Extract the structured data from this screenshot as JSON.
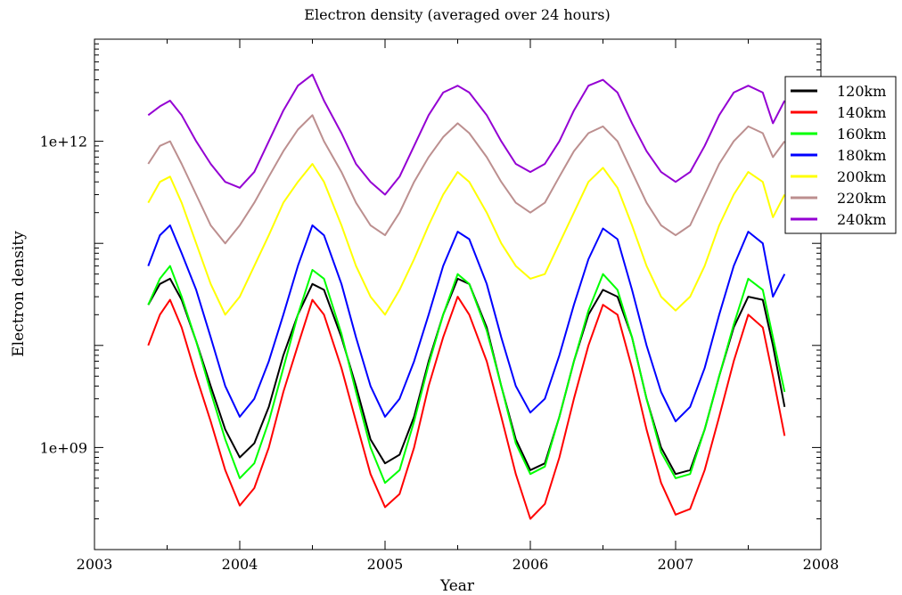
{
  "chart_data": {
    "type": "line",
    "title": "Electron density (averaged over 24 hours)",
    "xlabel": "Year",
    "ylabel": "Electron density",
    "xlim": [
      2003,
      2008
    ],
    "ylim": [
      100000000.0,
      10000000000000.0
    ],
    "yscale": "log",
    "grid": false,
    "legend_position": "top-right",
    "x_ticks": [
      2003,
      2004,
      2005,
      2006,
      2007,
      2008
    ],
    "x_tick_labels": [
      "2003",
      "2004",
      "2005",
      "2006",
      "2007",
      "2008"
    ],
    "y_ticks": [
      1000000000.0,
      1000000000000.0
    ],
    "y_tick_labels": [
      "1e+09",
      "1e+12"
    ],
    "series": [
      {
        "name": "120km",
        "color": "#000000",
        "x": [
          2003.37,
          2003.45,
          2003.52,
          2003.6,
          2003.7,
          2003.8,
          2003.9,
          2004.0,
          2004.1,
          2004.2,
          2004.3,
          2004.4,
          2004.5,
          2004.58,
          2004.7,
          2004.8,
          2004.9,
          2005.0,
          2005.1,
          2005.2,
          2005.3,
          2005.4,
          2005.5,
          2005.58,
          2005.7,
          2005.8,
          2005.9,
          2006.0,
          2006.1,
          2006.2,
          2006.3,
          2006.4,
          2006.5,
          2006.6,
          2006.7,
          2006.8,
          2006.9,
          2007.0,
          2007.1,
          2007.2,
          2007.3,
          2007.4,
          2007.5,
          2007.6,
          2007.67,
          2007.75
        ],
        "y": [
          25000000000.0,
          40000000000.0,
          45000000000.0,
          28000000000.0,
          11000000000.0,
          4000000000.0,
          1500000000.0,
          800000000.0,
          1100000000.0,
          2500000000.0,
          8000000000.0,
          20000000000.0,
          40000000000.0,
          35000000000.0,
          12000000000.0,
          4000000000.0,
          1200000000.0,
          700000000.0,
          850000000.0,
          2000000000.0,
          7000000000.0,
          20000000000.0,
          45000000000.0,
          40000000000.0,
          15000000000.0,
          4000000000.0,
          1200000000.0,
          600000000.0,
          700000000.0,
          2000000000.0,
          7000000000.0,
          20000000000.0,
          35000000000.0,
          30000000000.0,
          12000000000.0,
          3000000000.0,
          1000000000.0,
          550000000.0,
          600000000.0,
          1500000000.0,
          5000000000.0,
          15000000000.0,
          30000000000.0,
          28000000000.0,
          10000000000.0,
          2500000000.0
        ]
      },
      {
        "name": "140km",
        "color": "#ff0000",
        "x": [
          2003.37,
          2003.45,
          2003.52,
          2003.6,
          2003.7,
          2003.8,
          2003.9,
          2004.0,
          2004.1,
          2004.2,
          2004.3,
          2004.4,
          2004.5,
          2004.58,
          2004.7,
          2004.8,
          2004.9,
          2005.0,
          2005.1,
          2005.2,
          2005.3,
          2005.4,
          2005.5,
          2005.58,
          2005.7,
          2005.8,
          2005.9,
          2006.0,
          2006.1,
          2006.2,
          2006.3,
          2006.4,
          2006.5,
          2006.6,
          2006.7,
          2006.8,
          2006.9,
          2007.0,
          2007.1,
          2007.2,
          2007.3,
          2007.4,
          2007.5,
          2007.6,
          2007.67,
          2007.75
        ],
        "y": [
          10000000000.0,
          20000000000.0,
          28000000000.0,
          15000000000.0,
          5000000000.0,
          1800000000.0,
          600000000.0,
          270000000.0,
          400000000.0,
          1000000000.0,
          3500000000.0,
          10000000000.0,
          28000000000.0,
          20000000000.0,
          6000000000.0,
          1800000000.0,
          550000000.0,
          260000000.0,
          350000000.0,
          1000000000.0,
          4000000000.0,
          12000000000.0,
          30000000000.0,
          20000000000.0,
          7000000000.0,
          2000000000.0,
          550000000.0,
          200000000.0,
          280000000.0,
          800000000.0,
          3000000000.0,
          10000000000.0,
          25000000000.0,
          20000000000.0,
          6000000000.0,
          1500000000.0,
          450000000.0,
          220000000.0,
          250000000.0,
          600000000.0,
          2000000000.0,
          7000000000.0,
          20000000000.0,
          15000000000.0,
          5000000000.0,
          1300000000.0
        ]
      },
      {
        "name": "160km",
        "color": "#00ff00",
        "x": [
          2003.37,
          2003.45,
          2003.52,
          2003.6,
          2003.7,
          2003.8,
          2003.9,
          2004.0,
          2004.1,
          2004.2,
          2004.3,
          2004.4,
          2004.5,
          2004.58,
          2004.7,
          2004.8,
          2004.9,
          2005.0,
          2005.1,
          2005.2,
          2005.3,
          2005.4,
          2005.5,
          2005.58,
          2005.7,
          2005.8,
          2005.9,
          2006.0,
          2006.1,
          2006.2,
          2006.3,
          2006.4,
          2006.5,
          2006.6,
          2006.7,
          2006.8,
          2006.9,
          2007.0,
          2007.1,
          2007.2,
          2007.3,
          2007.4,
          2007.5,
          2007.6,
          2007.67,
          2007.75
        ],
        "y": [
          25000000000.0,
          45000000000.0,
          60000000000.0,
          30000000000.0,
          11000000000.0,
          3500000000.0,
          1200000000.0,
          500000000.0,
          700000000.0,
          1800000000.0,
          6000000000.0,
          20000000000.0,
          55000000000.0,
          45000000000.0,
          13000000000.0,
          3500000000.0,
          1000000000.0,
          450000000.0,
          600000000.0,
          1800000000.0,
          6500000000.0,
          20000000000.0,
          50000000000.0,
          40000000000.0,
          14000000000.0,
          4000000000.0,
          1100000000.0,
          550000000.0,
          650000000.0,
          2000000000.0,
          7000000000.0,
          22000000000.0,
          50000000000.0,
          35000000000.0,
          12000000000.0,
          3000000000.0,
          900000000.0,
          500000000.0,
          550000000.0,
          1500000000.0,
          5000000000.0,
          16000000000.0,
          45000000000.0,
          35000000000.0,
          12000000000.0,
          3500000000.0
        ]
      },
      {
        "name": "180km",
        "color": "#0000ff",
        "x": [
          2003.37,
          2003.45,
          2003.52,
          2003.6,
          2003.7,
          2003.8,
          2003.9,
          2004.0,
          2004.1,
          2004.2,
          2004.3,
          2004.4,
          2004.5,
          2004.58,
          2004.7,
          2004.8,
          2004.9,
          2005.0,
          2005.1,
          2005.2,
          2005.3,
          2005.4,
          2005.5,
          2005.58,
          2005.7,
          2005.8,
          2005.9,
          2006.0,
          2006.1,
          2006.2,
          2006.3,
          2006.4,
          2006.5,
          2006.6,
          2006.7,
          2006.8,
          2006.9,
          2007.0,
          2007.1,
          2007.2,
          2007.3,
          2007.4,
          2007.5,
          2007.6,
          2007.67,
          2007.75
        ],
        "y": [
          60000000000.0,
          120000000000.0,
          150000000000.0,
          80000000000.0,
          35000000000.0,
          12000000000.0,
          4000000000.0,
          2000000000.0,
          3000000000.0,
          7000000000.0,
          20000000000.0,
          60000000000.0,
          150000000000.0,
          120000000000.0,
          40000000000.0,
          12000000000.0,
          4000000000.0,
          2000000000.0,
          3000000000.0,
          7000000000.0,
          20000000000.0,
          60000000000.0,
          130000000000.0,
          110000000000.0,
          40000000000.0,
          12000000000.0,
          4000000000.0,
          2200000000.0,
          3000000000.0,
          8000000000.0,
          25000000000.0,
          70000000000.0,
          140000000000.0,
          110000000000.0,
          35000000000.0,
          10000000000.0,
          3500000000.0,
          1800000000.0,
          2500000000.0,
          6000000000.0,
          20000000000.0,
          60000000000.0,
          130000000000.0,
          100000000000.0,
          30000000000.0,
          50000000000.0
        ]
      },
      {
        "name": "200km",
        "color": "#ffff00",
        "x": [
          2003.37,
          2003.45,
          2003.52,
          2003.6,
          2003.7,
          2003.8,
          2003.9,
          2004.0,
          2004.1,
          2004.2,
          2004.3,
          2004.4,
          2004.5,
          2004.58,
          2004.7,
          2004.8,
          2004.9,
          2005.0,
          2005.1,
          2005.2,
          2005.3,
          2005.4,
          2005.5,
          2005.58,
          2005.7,
          2005.8,
          2005.9,
          2006.0,
          2006.1,
          2006.2,
          2006.3,
          2006.4,
          2006.5,
          2006.6,
          2006.7,
          2006.8,
          2006.9,
          2007.0,
          2007.1,
          2007.2,
          2007.3,
          2007.4,
          2007.5,
          2007.6,
          2007.67,
          2007.75
        ],
        "y": [
          250000000000.0,
          400000000000.0,
          450000000000.0,
          250000000000.0,
          100000000000.0,
          40000000000.0,
          20000000000.0,
          30000000000.0,
          60000000000.0,
          120000000000.0,
          250000000000.0,
          400000000000.0,
          600000000000.0,
          400000000000.0,
          150000000000.0,
          60000000000.0,
          30000000000.0,
          20000000000.0,
          35000000000.0,
          70000000000.0,
          150000000000.0,
          300000000000.0,
          500000000000.0,
          400000000000.0,
          200000000000.0,
          100000000000.0,
          60000000000.0,
          45000000000.0,
          50000000000.0,
          100000000000.0,
          200000000000.0,
          400000000000.0,
          550000000000.0,
          350000000000.0,
          150000000000.0,
          60000000000.0,
          30000000000.0,
          22000000000.0,
          30000000000.0,
          60000000000.0,
          150000000000.0,
          300000000000.0,
          500000000000.0,
          400000000000.0,
          180000000000.0,
          300000000000.0
        ]
      },
      {
        "name": "220km",
        "color": "#bc8f8f",
        "x": [
          2003.37,
          2003.45,
          2003.52,
          2003.6,
          2003.7,
          2003.8,
          2003.9,
          2004.0,
          2004.1,
          2004.2,
          2004.3,
          2004.4,
          2004.5,
          2004.58,
          2004.7,
          2004.8,
          2004.9,
          2005.0,
          2005.1,
          2005.2,
          2005.3,
          2005.4,
          2005.5,
          2005.58,
          2005.7,
          2005.8,
          2005.9,
          2006.0,
          2006.1,
          2006.2,
          2006.3,
          2006.4,
          2006.5,
          2006.6,
          2006.7,
          2006.8,
          2006.9,
          2007.0,
          2007.1,
          2007.2,
          2007.3,
          2007.4,
          2007.5,
          2007.6,
          2007.67,
          2007.75
        ],
        "y": [
          600000000000.0,
          900000000000.0,
          1000000000000.0,
          600000000000.0,
          300000000000.0,
          150000000000.0,
          100000000000.0,
          150000000000.0,
          250000000000.0,
          450000000000.0,
          800000000000.0,
          1300000000000.0,
          1800000000000.0,
          1000000000000.0,
          500000000000.0,
          250000000000.0,
          150000000000.0,
          120000000000.0,
          200000000000.0,
          400000000000.0,
          700000000000.0,
          1100000000000.0,
          1500000000000.0,
          1200000000000.0,
          700000000000.0,
          400000000000.0,
          250000000000.0,
          200000000000.0,
          250000000000.0,
          450000000000.0,
          800000000000.0,
          1200000000000.0,
          1400000000000.0,
          1000000000000.0,
          500000000000.0,
          250000000000.0,
          150000000000.0,
          120000000000.0,
          150000000000.0,
          300000000000.0,
          600000000000.0,
          1000000000000.0,
          1400000000000.0,
          1200000000000.0,
          700000000000.0,
          1000000000000.0
        ]
      },
      {
        "name": "240km",
        "color": "#9400d3",
        "x": [
          2003.37,
          2003.45,
          2003.52,
          2003.6,
          2003.7,
          2003.8,
          2003.9,
          2004.0,
          2004.1,
          2004.2,
          2004.3,
          2004.4,
          2004.5,
          2004.58,
          2004.7,
          2004.8,
          2004.9,
          2005.0,
          2005.1,
          2005.2,
          2005.3,
          2005.4,
          2005.5,
          2005.58,
          2005.7,
          2005.8,
          2005.9,
          2006.0,
          2006.1,
          2006.2,
          2006.3,
          2006.4,
          2006.5,
          2006.6,
          2006.7,
          2006.8,
          2006.9,
          2007.0,
          2007.1,
          2007.2,
          2007.3,
          2007.4,
          2007.5,
          2007.6,
          2007.67,
          2007.75
        ],
        "y": [
          1800000000000.0,
          2200000000000.0,
          2500000000000.0,
          1800000000000.0,
          1000000000000.0,
          600000000000.0,
          400000000000.0,
          350000000000.0,
          500000000000.0,
          1000000000000.0,
          2000000000000.0,
          3500000000000.0,
          4500000000000.0,
          2500000000000.0,
          1200000000000.0,
          600000000000.0,
          400000000000.0,
          300000000000.0,
          450000000000.0,
          900000000000.0,
          1800000000000.0,
          3000000000000.0,
          3500000000000.0,
          3000000000000.0,
          1800000000000.0,
          1000000000000.0,
          600000000000.0,
          500000000000.0,
          600000000000.0,
          1000000000000.0,
          2000000000000.0,
          3500000000000.0,
          4000000000000.0,
          3000000000000.0,
          1500000000000.0,
          800000000000.0,
          500000000000.0,
          400000000000.0,
          500000000000.0,
          900000000000.0,
          1800000000000.0,
          3000000000000.0,
          3500000000000.0,
          3000000000000.0,
          1500000000000.0,
          2500000000000.0
        ]
      }
    ]
  }
}
